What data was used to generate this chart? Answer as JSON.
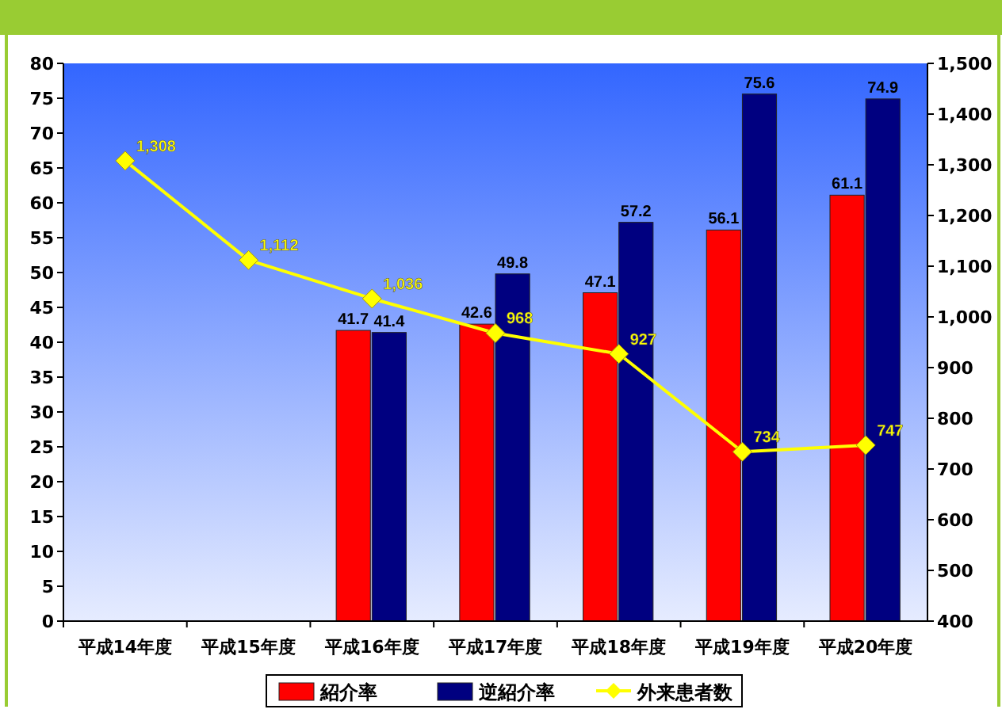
{
  "chart_data": {
    "type": "bar",
    "categories": [
      "平成14年度",
      "平成15年度",
      "平成16年度",
      "平成17年度",
      "平成18年度",
      "平成19年度",
      "平成20年度"
    ],
    "series": [
      {
        "name": "紹介率",
        "color": "#ff0000",
        "values": [
          null,
          null,
          41.7,
          42.6,
          47.1,
          56.1,
          61.1
        ]
      },
      {
        "name": "逆紹介率",
        "color": "#000080",
        "values": [
          null,
          null,
          41.4,
          49.8,
          57.2,
          75.6,
          74.9
        ]
      },
      {
        "name": "外来患者数",
        "type": "line",
        "axis": "y2",
        "color": "#ffff00",
        "marker": "diamond",
        "values": [
          1308,
          1112,
          1036,
          968,
          927,
          734,
          747
        ],
        "value_labels": [
          "1,308",
          "1,112",
          "1,036",
          "968",
          "927",
          "734",
          "747"
        ]
      }
    ],
    "ylim": [
      0,
      80
    ],
    "yticks": [
      0,
      5,
      10,
      15,
      20,
      25,
      30,
      35,
      40,
      45,
      50,
      55,
      60,
      65,
      70,
      75,
      80
    ],
    "y2lim": [
      400,
      1500
    ],
    "y2ticks": [
      400,
      500,
      600,
      700,
      800,
      900,
      {
        "value": 1000,
        "label": "1,000"
      },
      {
        "value": 1100,
        "label": "1,100"
      },
      {
        "value": 1200,
        "label": "1,200"
      },
      {
        "value": 1300,
        "label": "1,300"
      },
      {
        "value": 1400,
        "label": "1,400"
      },
      {
        "value": 1500,
        "label": "1,500"
      }
    ],
    "data_labels": true,
    "legend": "bottom",
    "grid": false
  }
}
